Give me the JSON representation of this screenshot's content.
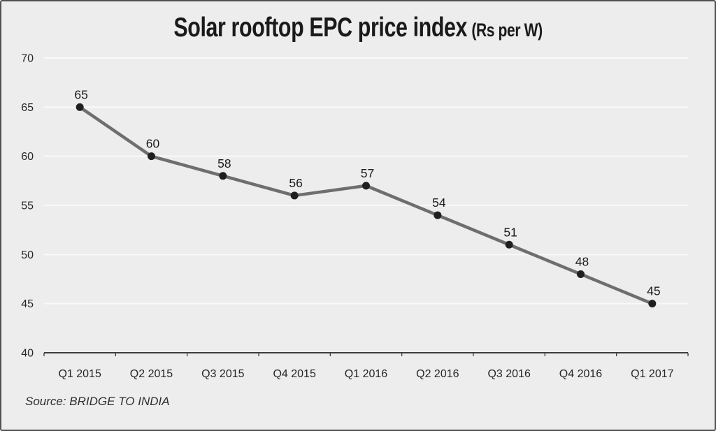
{
  "title": {
    "main": "Solar rooftop EPC price index",
    "unit": "(Rs per W)"
  },
  "source": "Source: BRIDGE TO INDIA",
  "chart_data": {
    "type": "line",
    "title": "Solar rooftop EPC price index (Rs per W)",
    "categories": [
      "Q1 2015",
      "Q2 2015",
      "Q3 2015",
      "Q4 2015",
      "Q1 2016",
      "Q2 2016",
      "Q3 2016",
      "Q4 2016",
      "Q1 2017"
    ],
    "values": [
      65,
      60,
      58,
      56,
      57,
      54,
      51,
      48,
      45
    ],
    "xlabel": "",
    "ylabel": "",
    "ylim": [
      40,
      70
    ],
    "ytick_step": 5,
    "grid": true,
    "legend_position": "none",
    "colors": {
      "background": "#ededed",
      "gridline": "#f9f9f9",
      "axis": "#3d3d3d",
      "line": "#6e6e6e",
      "marker": "#1f1f1f",
      "text": "#262626"
    }
  }
}
